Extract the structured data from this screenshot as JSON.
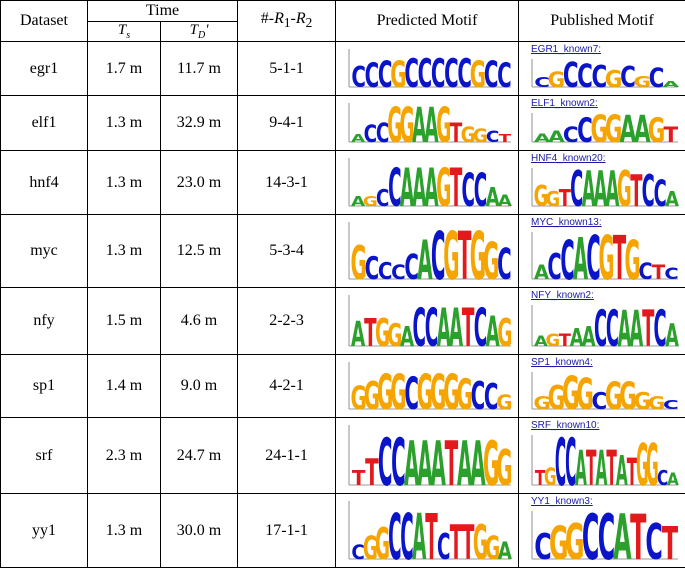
{
  "header": {
    "dataset": "Dataset",
    "time": "Time",
    "ts_main": "T",
    "ts_sub": "s",
    "td_main": "T",
    "td_sub": "D",
    "td_suffix": "'",
    "rounds_prefix": "#-",
    "rounds_r": "R",
    "rounds_sub1": "1",
    "rounds_sep": "-",
    "rounds_sub2": "2",
    "predicted": "Predicted Motif",
    "published": "Published Motif"
  },
  "colors": {
    "A": "#2ca02c",
    "C": "#0a14c8",
    "G": "#f5a400",
    "T": "#e31a1c",
    "link": "#1a1aa6"
  },
  "rows": [
    {
      "dataset": "egr1",
      "ts": "1.7 m",
      "td": "11.7 m",
      "rounds": "5-1-1",
      "predicted": {
        "letters": [
          "C",
          "C",
          "C",
          "G",
          "C",
          "C",
          "C",
          "C",
          "C",
          "G",
          "C",
          "C"
        ],
        "heights": [
          0.55,
          0.65,
          0.7,
          0.7,
          0.75,
          0.75,
          0.75,
          0.75,
          0.75,
          0.7,
          0.7,
          0.65
        ]
      },
      "published": {
        "label": "EGR1_known7:",
        "letters": [
          "C",
          "G",
          "C",
          "C",
          "C",
          "G",
          "C",
          "G",
          "C",
          "A"
        ],
        "heights": [
          0.35,
          0.55,
          0.9,
          0.85,
          0.8,
          0.6,
          0.75,
          0.4,
          0.7,
          0.2
        ]
      }
    },
    {
      "dataset": "elf1",
      "ts": "1.3 m",
      "td": "32.9 m",
      "rounds": "9-4-1",
      "predicted": {
        "letters": [
          "A",
          "C",
          "C",
          "G",
          "G",
          "A",
          "A",
          "G",
          "T",
          "G",
          "G",
          "C",
          "T"
        ],
        "heights": [
          0.2,
          0.45,
          0.5,
          0.9,
          0.9,
          0.9,
          0.9,
          0.9,
          0.5,
          0.4,
          0.35,
          0.3,
          0.2
        ]
      },
      "published": {
        "label": "ELF1_known2:",
        "letters": [
          "A",
          "A",
          "C",
          "C",
          "G",
          "G",
          "A",
          "A",
          "G",
          "T"
        ],
        "heights": [
          0.3,
          0.4,
          0.55,
          0.85,
          0.95,
          0.95,
          0.95,
          0.95,
          0.85,
          0.55
        ]
      }
    },
    {
      "dataset": "hnf4",
      "ts": "1.3 m",
      "td": "23.0 m",
      "rounds": "14-3-1",
      "predicted": {
        "letters": [
          "A",
          "G",
          "C",
          "C",
          "A",
          "A",
          "A",
          "G",
          "T",
          "C",
          "C",
          "A",
          "A"
        ],
        "heights": [
          0.2,
          0.2,
          0.35,
          0.8,
          0.8,
          0.8,
          0.8,
          0.8,
          0.8,
          0.7,
          0.7,
          0.4,
          0.25
        ]
      },
      "published": {
        "label": "HNF4_known20:",
        "letters": [
          "G",
          "G",
          "T",
          "C",
          "A",
          "A",
          "A",
          "G",
          "T",
          "C",
          "C",
          "A"
        ],
        "heights": [
          0.55,
          0.4,
          0.45,
          0.95,
          0.95,
          0.95,
          0.95,
          0.95,
          0.85,
          0.85,
          0.7,
          0.4
        ]
      }
    },
    {
      "dataset": "myc",
      "ts": "1.3 m",
      "td": "12.5 m",
      "rounds": "5-3-4",
      "predicted": {
        "letters": [
          "G",
          "C",
          "C",
          "C",
          "C",
          "A",
          "C",
          "G",
          "T",
          "G",
          "G",
          "C"
        ],
        "heights": [
          0.6,
          0.4,
          0.3,
          0.25,
          0.45,
          0.7,
          0.85,
          0.85,
          0.85,
          0.85,
          0.65,
          0.55
        ]
      },
      "published": {
        "label": "MYC_known13:",
        "letters": [
          "A",
          "C",
          "C",
          "A",
          "C",
          "G",
          "T",
          "G",
          "C",
          "T",
          "C"
        ],
        "heights": [
          0.3,
          0.55,
          0.85,
          0.9,
          0.95,
          0.95,
          0.95,
          0.85,
          0.35,
          0.3,
          0.25
        ]
      }
    },
    {
      "dataset": "nfy",
      "ts": "1.5 m",
      "td": "4.6 m",
      "rounds": "2-2-3",
      "predicted": {
        "letters": [
          "A",
          "T",
          "G",
          "G",
          "A",
          "C",
          "C",
          "A",
          "A",
          "T",
          "C",
          "A",
          "G"
        ],
        "heights": [
          0.5,
          0.55,
          0.55,
          0.45,
          0.4,
          0.75,
          0.75,
          0.75,
          0.75,
          0.75,
          0.75,
          0.6,
          0.55
        ]
      },
      "published": {
        "label": "NFY_known2:",
        "letters": [
          "A",
          "G",
          "T",
          "A",
          "A",
          "C",
          "C",
          "A",
          "A",
          "T",
          "C",
          "A"
        ],
        "heights": [
          0.25,
          0.3,
          0.3,
          0.45,
          0.5,
          0.9,
          0.9,
          0.9,
          0.9,
          0.9,
          0.9,
          0.55
        ]
      }
    },
    {
      "dataset": "sp1",
      "ts": "1.4 m",
      "td": "9.0 m",
      "rounds": "4-2-1",
      "predicted": {
        "letters": [
          "G",
          "G",
          "G",
          "G",
          "C",
          "G",
          "G",
          "G",
          "G",
          "C",
          "C",
          "G"
        ],
        "heights": [
          0.5,
          0.6,
          0.75,
          0.75,
          0.7,
          0.75,
          0.75,
          0.75,
          0.65,
          0.6,
          0.55,
          0.3
        ]
      },
      "published": {
        "label": "SP1_known4:",
        "letters": [
          "G",
          "G",
          "G",
          "G",
          "C",
          "G",
          "G",
          "G",
          "G",
          "C"
        ],
        "heights": [
          0.35,
          0.65,
          0.9,
          0.85,
          0.45,
          0.75,
          0.75,
          0.45,
          0.35,
          0.25
        ]
      }
    },
    {
      "dataset": "srf",
      "ts": "2.3 m",
      "td": "24.7 m",
      "rounds": "24-1-1",
      "predicted": {
        "letters": [
          "T",
          "T",
          "C",
          "C",
          "A",
          "A",
          "A",
          "T",
          "A",
          "A",
          "G",
          "G"
        ],
        "heights": [
          0.25,
          0.45,
          0.8,
          0.8,
          0.75,
          0.75,
          0.75,
          0.75,
          0.75,
          0.75,
          0.75,
          0.6
        ]
      },
      "published": {
        "label": "SRF_known10:",
        "letters": [
          "T",
          "G",
          "C",
          "C",
          "A",
          "T",
          "A",
          "T",
          "A",
          "T",
          "G",
          "G",
          "C",
          "A"
        ],
        "heights": [
          0.3,
          0.35,
          0.95,
          0.95,
          0.7,
          0.7,
          0.7,
          0.7,
          0.6,
          0.55,
          0.85,
          0.85,
          0.3,
          0.25
        ]
      }
    },
    {
      "dataset": "yy1",
      "ts": "1.3 m",
      "td": "30.0 m",
      "rounds": "17-1-1",
      "predicted": {
        "letters": [
          "C",
          "G",
          "G",
          "C",
          "C",
          "A",
          "T",
          "C",
          "T",
          "T",
          "G",
          "G",
          "A"
        ],
        "heights": [
          0.25,
          0.4,
          0.55,
          0.8,
          0.8,
          0.8,
          0.8,
          0.45,
          0.6,
          0.6,
          0.6,
          0.4,
          0.3
        ]
      },
      "published": {
        "label": "YY1_known3:",
        "letters": [
          "C",
          "G",
          "G",
          "C",
          "C",
          "A",
          "T",
          "C",
          "T"
        ],
        "heights": [
          0.55,
          0.7,
          0.75,
          0.95,
          0.95,
          0.95,
          0.95,
          0.75,
          0.7
        ]
      }
    }
  ]
}
